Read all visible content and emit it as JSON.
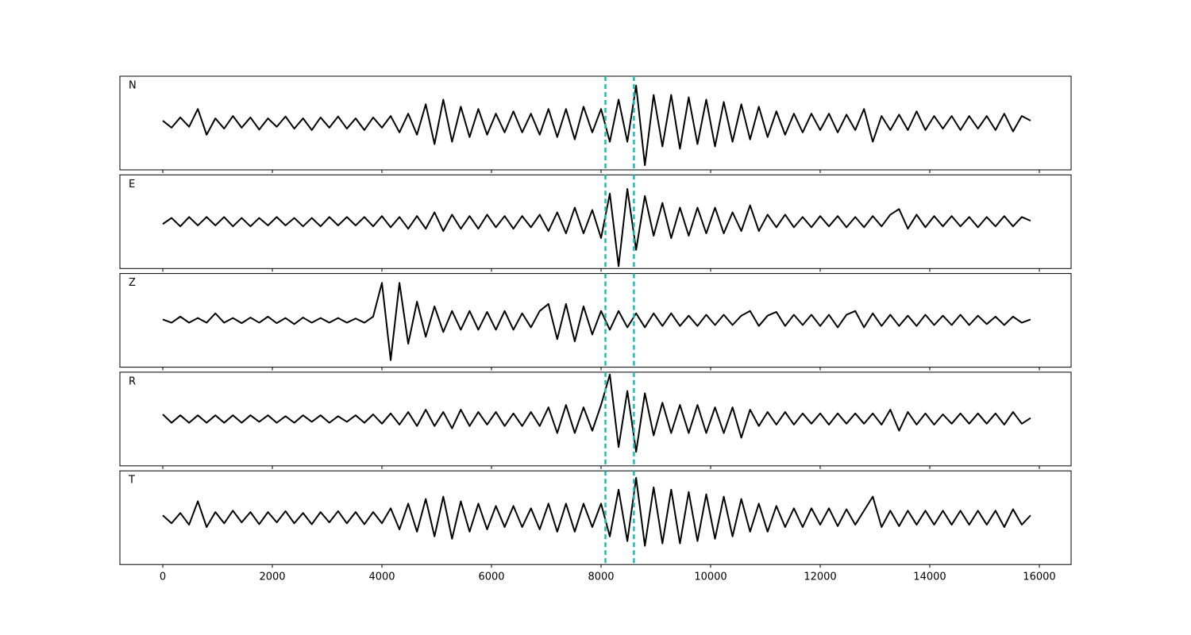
{
  "chart_data": {
    "type": "line",
    "x": [
      0,
      160,
      320,
      480,
      640,
      800,
      960,
      1120,
      1280,
      1440,
      1600,
      1760,
      1920,
      2080,
      2240,
      2400,
      2560,
      2720,
      2880,
      3040,
      3200,
      3360,
      3520,
      3680,
      3840,
      4000,
      4160,
      4320,
      4480,
      4640,
      4800,
      4960,
      5120,
      5280,
      5440,
      5600,
      5760,
      5920,
      6080,
      6240,
      6400,
      6560,
      6720,
      6880,
      7040,
      7200,
      7360,
      7520,
      7680,
      7840,
      8000,
      8160,
      8320,
      8480,
      8640,
      8800,
      8960,
      9120,
      9280,
      9440,
      9600,
      9760,
      9920,
      10080,
      10240,
      10400,
      10560,
      10720,
      10880,
      11040,
      11200,
      11360,
      11520,
      11680,
      11840,
      12000,
      12160,
      12320,
      12480,
      12640,
      12800,
      12960,
      13120,
      13280,
      13440,
      13600,
      13760,
      13920,
      14080,
      14240,
      14400,
      14560,
      14720,
      14880,
      15040,
      15200,
      15360,
      15520,
      15680,
      15840
    ],
    "series": [
      {
        "name": "N",
        "color": "#000000",
        "values": [
          0.05,
          -0.1,
          0.12,
          -0.08,
          0.3,
          -0.25,
          0.1,
          -0.12,
          0.15,
          -0.1,
          0.12,
          -0.14,
          0.1,
          -0.08,
          0.14,
          -0.12,
          0.1,
          -0.15,
          0.12,
          -0.1,
          0.14,
          -0.12,
          0.1,
          -0.15,
          0.12,
          -0.1,
          0.15,
          -0.2,
          0.2,
          -0.25,
          0.4,
          -0.45,
          0.5,
          -0.4,
          0.35,
          -0.3,
          0.3,
          -0.25,
          0.2,
          -0.2,
          0.25,
          -0.2,
          0.2,
          -0.25,
          0.3,
          -0.3,
          0.3,
          -0.35,
          0.35,
          -0.2,
          0.3,
          -0.4,
          0.5,
          -0.4,
          0.8,
          -0.9,
          0.6,
          -0.5,
          0.6,
          -0.55,
          0.55,
          -0.45,
          0.5,
          -0.5,
          0.45,
          -0.4,
          0.4,
          -0.35,
          0.35,
          -0.3,
          0.25,
          -0.25,
          0.2,
          -0.2,
          0.2,
          -0.15,
          0.2,
          -0.2,
          0.18,
          -0.15,
          0.3,
          -0.4,
          0.15,
          -0.15,
          0.18,
          -0.15,
          0.25,
          -0.15,
          0.15,
          -0.12,
          0.15,
          -0.15,
          0.15,
          -0.12,
          0.15,
          -0.15,
          0.2,
          -0.18,
          0.15,
          0.05
        ]
      },
      {
        "name": "E",
        "color": "#000000",
        "values": [
          -0.05,
          0.08,
          -0.1,
          0.1,
          -0.08,
          0.1,
          -0.08,
          0.1,
          -0.1,
          0.08,
          -0.1,
          0.08,
          -0.08,
          0.1,
          -0.08,
          0.08,
          -0.1,
          0.08,
          -0.1,
          0.1,
          -0.08,
          0.1,
          -0.08,
          0.1,
          -0.1,
          0.12,
          -0.12,
          0.1,
          -0.15,
          0.12,
          -0.15,
          0.2,
          -0.2,
          0.15,
          -0.15,
          0.12,
          -0.15,
          0.15,
          -0.12,
          0.12,
          -0.15,
          0.12,
          -0.12,
          0.15,
          -0.2,
          0.2,
          -0.25,
          0.3,
          -0.25,
          0.25,
          -0.35,
          0.6,
          -0.95,
          0.7,
          -0.6,
          0.55,
          -0.3,
          0.4,
          -0.35,
          0.3,
          -0.3,
          0.3,
          -0.25,
          0.3,
          -0.25,
          0.2,
          -0.2,
          0.35,
          -0.2,
          0.15,
          -0.12,
          0.15,
          -0.12,
          0.1,
          -0.12,
          0.12,
          -0.1,
          0.12,
          -0.12,
          0.1,
          -0.12,
          0.12,
          -0.1,
          0.15,
          0.27,
          -0.15,
          0.15,
          -0.12,
          0.12,
          -0.1,
          0.12,
          -0.1,
          0.1,
          -0.12,
          0.1,
          -0.1,
          0.12,
          -0.1,
          0.1,
          0.02
        ]
      },
      {
        "name": "Z",
        "color": "#000000",
        "values": [
          0.02,
          -0.05,
          0.08,
          -0.05,
          0.05,
          -0.05,
          0.15,
          -0.05,
          0.05,
          -0.06,
          0.06,
          -0.05,
          0.08,
          -0.06,
          0.05,
          -0.08,
          0.06,
          -0.05,
          0.05,
          -0.05,
          0.05,
          -0.05,
          0.04,
          -0.05,
          0.08,
          0.8,
          -0.85,
          0.8,
          -0.5,
          0.4,
          -0.35,
          0.3,
          -0.25,
          0.2,
          -0.2,
          0.2,
          -0.2,
          0.18,
          -0.2,
          0.2,
          -0.2,
          0.15,
          -0.15,
          0.2,
          0.35,
          -0.4,
          0.35,
          -0.45,
          0.3,
          -0.3,
          0.2,
          -0.2,
          0.2,
          -0.15,
          0.15,
          -0.15,
          0.15,
          -0.12,
          0.15,
          -0.12,
          0.1,
          -0.12,
          0.12,
          -0.1,
          0.12,
          -0.1,
          0.1,
          0.2,
          -0.12,
          0.1,
          0.18,
          -0.12,
          0.12,
          -0.1,
          0.12,
          -0.12,
          0.12,
          -0.15,
          0.12,
          0.2,
          -0.15,
          0.15,
          -0.12,
          0.12,
          -0.12,
          0.1,
          -0.12,
          0.12,
          -0.1,
          0.1,
          -0.1,
          0.12,
          -0.1,
          0.1,
          -0.08,
          0.08,
          -0.1,
          0.08,
          -0.05,
          0.02
        ]
      },
      {
        "name": "R",
        "color": "#000000",
        "values": [
          0.1,
          -0.08,
          0.08,
          -0.08,
          0.08,
          -0.08,
          0.08,
          -0.08,
          0.08,
          -0.08,
          0.08,
          -0.06,
          0.08,
          -0.08,
          0.06,
          -0.08,
          0.08,
          -0.06,
          0.08,
          -0.08,
          0.06,
          -0.06,
          0.08,
          -0.08,
          0.1,
          -0.1,
          0.12,
          -0.12,
          0.15,
          -0.15,
          0.2,
          -0.15,
          0.15,
          -0.2,
          0.2,
          -0.15,
          0.15,
          -0.12,
          0.15,
          -0.15,
          0.12,
          -0.15,
          0.15,
          -0.15,
          0.25,
          -0.3,
          0.3,
          -0.3,
          0.25,
          -0.25,
          0.3,
          0.95,
          -0.6,
          0.6,
          -0.7,
          0.55,
          -0.35,
          0.35,
          -0.3,
          0.3,
          -0.3,
          0.3,
          -0.3,
          0.25,
          -0.3,
          0.25,
          -0.4,
          0.2,
          -0.15,
          0.15,
          -0.12,
          0.15,
          -0.12,
          0.12,
          -0.1,
          0.12,
          -0.12,
          0.12,
          -0.1,
          0.12,
          -0.1,
          0.12,
          -0.12,
          0.2,
          -0.25,
          0.15,
          -0.12,
          0.12,
          -0.12,
          0.1,
          -0.1,
          0.12,
          -0.1,
          0.12,
          -0.1,
          0.12,
          -0.12,
          0.15,
          -0.1,
          0.02
        ]
      },
      {
        "name": "T",
        "color": "#000000",
        "values": [
          0.05,
          -0.12,
          0.1,
          -0.15,
          0.35,
          -0.2,
          0.12,
          -0.12,
          0.15,
          -0.1,
          0.12,
          -0.14,
          0.12,
          -0.1,
          0.14,
          -0.12,
          0.1,
          -0.14,
          0.12,
          -0.1,
          0.14,
          -0.12,
          0.12,
          -0.14,
          0.12,
          -0.12,
          0.2,
          -0.25,
          0.3,
          -0.3,
          0.4,
          -0.4,
          0.45,
          -0.45,
          0.35,
          -0.3,
          0.3,
          -0.25,
          0.25,
          -0.2,
          0.25,
          -0.2,
          0.2,
          -0.25,
          0.3,
          -0.3,
          0.3,
          -0.3,
          0.3,
          -0.2,
          0.3,
          -0.4,
          0.6,
          -0.5,
          0.85,
          -0.6,
          0.65,
          -0.55,
          0.6,
          -0.55,
          0.55,
          -0.5,
          0.5,
          -0.45,
          0.45,
          -0.4,
          0.4,
          -0.3,
          0.3,
          -0.3,
          0.25,
          -0.2,
          0.2,
          -0.2,
          0.2,
          -0.15,
          0.2,
          -0.18,
          0.18,
          -0.15,
          0.15,
          0.45,
          -0.2,
          0.15,
          -0.18,
          0.15,
          -0.15,
          0.15,
          -0.15,
          0.15,
          -0.15,
          0.15,
          -0.15,
          0.15,
          -0.15,
          0.15,
          -0.2,
          0.18,
          -0.15,
          0.05
        ]
      }
    ],
    "vlines": [
      8080,
      8600
    ],
    "vline_color": "#17bfb0",
    "xlim": [
      -783,
      16580
    ],
    "xticks": [
      0,
      2000,
      4000,
      6000,
      8000,
      10000,
      12000,
      14000,
      16000
    ],
    "ylim": [
      -1,
      1
    ]
  }
}
